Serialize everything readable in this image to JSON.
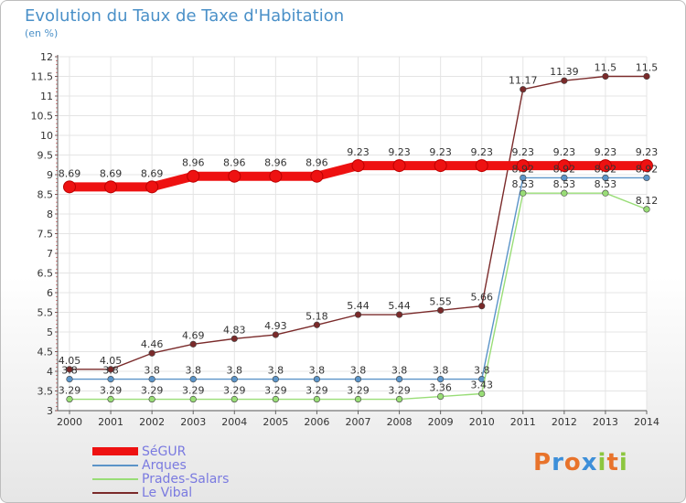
{
  "title": "Evolution du Taux de Taxe d'Habitation",
  "subtitle": "(en %)",
  "logo": {
    "letters": [
      "P",
      "r",
      "o",
      "x",
      "i",
      "t",
      "i"
    ],
    "colors": [
      "#e8732b",
      "#3d8fd9",
      "#e8732b",
      "#3d8fd9",
      "#8cc63f",
      "#e8732b",
      "#8cc63f"
    ]
  },
  "chart_data": {
    "type": "line",
    "x": [
      "2000",
      "2001",
      "2002",
      "2003",
      "2004",
      "2005",
      "2006",
      "2007",
      "2008",
      "2009",
      "2010",
      "2011",
      "2012",
      "2013",
      "2014"
    ],
    "ylim": [
      3,
      12
    ],
    "yticks": [
      "3",
      "3.5",
      "4",
      "4.5",
      "5",
      "5.5",
      "6",
      "6.5",
      "7",
      "7.5",
      "8",
      "8.5",
      "9",
      "9.5",
      "10",
      "10.5",
      "11",
      "11.5",
      "12"
    ],
    "grid": true,
    "legend_position": "bottom-left",
    "series": [
      {
        "name": "SéGUR",
        "color": "#ee1111",
        "values": [
          8.69,
          8.69,
          8.69,
          8.96,
          8.96,
          8.96,
          8.96,
          9.23,
          9.23,
          9.23,
          9.23,
          9.23,
          9.23,
          9.23,
          9.23
        ],
        "labels": [
          "8.69",
          "8.69",
          "8.69",
          "8.96",
          "8.96",
          "8.96",
          "8.96",
          "9.23",
          "9.23",
          "9.23",
          "9.23",
          "9.23",
          "9.23",
          "9.23",
          "9.23"
        ]
      },
      {
        "name": "Arques",
        "color": "#5b94c8",
        "values": [
          3.8,
          3.8,
          3.8,
          3.8,
          3.8,
          3.8,
          3.8,
          3.8,
          3.8,
          3.8,
          3.8,
          8.92,
          8.92,
          8.92,
          8.92
        ],
        "labels": [
          "3.8",
          "3.8",
          "3.8",
          "3.8",
          "3.8",
          "3.8",
          "3.8",
          "3.8",
          "3.8",
          "3.8",
          "3.8",
          "8.92",
          "8.92",
          "8.92",
          "8.92"
        ]
      },
      {
        "name": "Prades-Salars",
        "color": "#99dd77",
        "values": [
          3.29,
          3.29,
          3.29,
          3.29,
          3.29,
          3.29,
          3.29,
          3.29,
          3.29,
          3.36,
          3.43,
          8.53,
          8.53,
          8.53,
          8.12
        ],
        "labels": [
          "3.29",
          "3.29",
          "3.29",
          "3.29",
          "3.29",
          "3.29",
          "3.29",
          "3.29",
          "3.29",
          "3.36",
          "3.43",
          "8.53",
          "8.53",
          "8.53",
          "8.12"
        ]
      },
      {
        "name": "Le Vibal",
        "color": "#7a2a2a",
        "values": [
          4.05,
          4.05,
          4.46,
          4.69,
          4.83,
          4.93,
          5.18,
          5.44,
          5.44,
          5.55,
          5.66,
          11.17,
          11.39,
          11.5,
          11.5
        ],
        "labels": [
          "4.05",
          "4.05",
          "4.46",
          "4.69",
          "4.83",
          "4.93",
          "5.18",
          "5.44",
          "5.44",
          "5.55",
          "5.66",
          "11.17",
          "11.39",
          "11.5",
          "11.5"
        ]
      }
    ]
  }
}
